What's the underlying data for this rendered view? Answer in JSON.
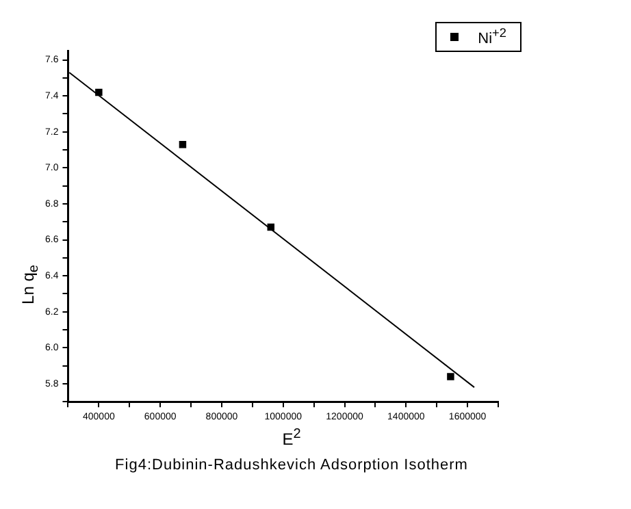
{
  "chart_data": {
    "type": "scatter",
    "xlabel": "E$^{2}$",
    "ylabel": "Ln q$_{e}$",
    "annotations": [
      "Fig4:Dubinin-Radushkevich Adsorption Isotherm"
    ],
    "series": [
      {
        "name": "Ni$^{+2}$",
        "marker": "square",
        "color": "#000000",
        "x": [
          400000,
          673000,
          960000,
          1545000
        ],
        "values": [
          7.42,
          7.13,
          6.67,
          5.84
        ]
      },
      {
        "type": "line",
        "marker": "none",
        "color": "#000000",
        "x": [
          304000,
          1622000
        ],
        "values": [
          7.53,
          5.78
        ]
      }
    ],
    "legend": "top right",
    "grid": false,
    "xlim": [
      300000,
      1700000
    ],
    "ylim": [
      5.7,
      7.65
    ],
    "xticks": [
      {
        "value": 300000,
        "label": null
      },
      400000,
      {
        "value": 500000,
        "label": null
      },
      600000,
      {
        "value": 700000,
        "label": null
      },
      800000,
      {
        "value": 900000,
        "label": null
      },
      1000000,
      {
        "value": 1100000,
        "label": null
      },
      1200000,
      {
        "value": 1300000,
        "label": null
      },
      1400000,
      {
        "value": 1500000,
        "label": null
      },
      1600000,
      {
        "value": 1700000,
        "label": null
      }
    ],
    "yticks": [
      {
        "value": 5.7,
        "label": null
      },
      {
        "value": 5.8,
        "label": "5.8"
      },
      {
        "value": 5.9,
        "label": null
      },
      {
        "value": 6.0,
        "label": "6.0"
      },
      {
        "value": 6.1,
        "label": null
      },
      {
        "value": 6.2,
        "label": "6.2"
      },
      {
        "value": 6.3,
        "label": null
      },
      {
        "value": 6.4,
        "label": "6.4"
      },
      {
        "value": 6.5,
        "label": null
      },
      {
        "value": 6.6,
        "label": "6.6"
      },
      {
        "value": 6.7,
        "label": null
      },
      {
        "value": 6.8,
        "label": "6.8"
      },
      {
        "value": 6.9,
        "label": null
      },
      {
        "value": 7.0,
        "label": "7.0"
      },
      {
        "value": 7.1,
        "label": null
      },
      {
        "value": 7.2,
        "label": "7.2"
      },
      {
        "value": 7.3,
        "label": null
      },
      {
        "value": 7.4,
        "label": "7.4"
      },
      {
        "value": 7.5,
        "label": null
      },
      {
        "value": 7.6,
        "label": "7.6"
      }
    ]
  }
}
